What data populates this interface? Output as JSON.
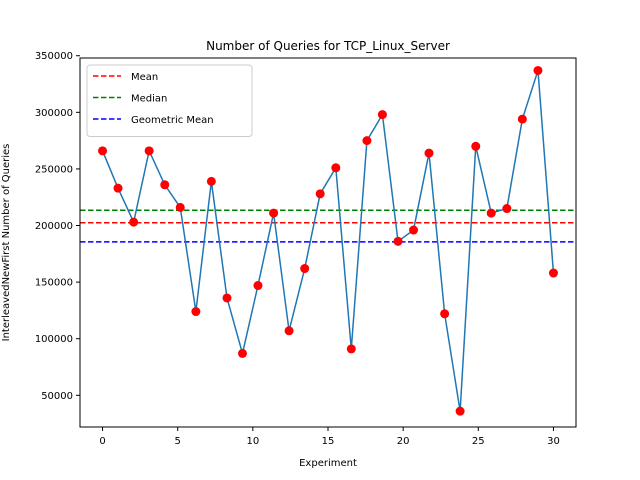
{
  "chart_data": {
    "type": "line",
    "title": "Number of Queries for TCP_Linux_Server",
    "xlabel": "Experiment",
    "ylabel": "InterleavedNewFirst Number of Queries",
    "xlim": [
      -1.5,
      31.5
    ],
    "ylim": [
      22000,
      348000
    ],
    "xticks": [
      0,
      5,
      10,
      15,
      20,
      25,
      30
    ],
    "yticks": [
      50000,
      100000,
      150000,
      200000,
      250000,
      300000,
      350000
    ],
    "x": [
      0,
      1.03,
      2.07,
      3.1,
      4.14,
      5.17,
      6.21,
      7.24,
      8.28,
      9.31,
      10.34,
      11.38,
      12.41,
      13.45,
      14.48,
      15.52,
      16.55,
      17.59,
      18.62,
      19.66,
      20.69,
      21.72,
      22.76,
      23.79,
      24.83,
      25.86,
      26.9,
      27.93,
      28.97,
      30.0
    ],
    "series": [
      {
        "values": [
          266000,
          233000,
          203000,
          266000,
          236000,
          216000,
          124000,
          239000,
          136000,
          87000,
          147000,
          211000,
          107000,
          162000,
          228000,
          251000,
          91000,
          275000,
          298000,
          186000,
          196000,
          264000,
          122000,
          36000,
          270000,
          211000,
          215000,
          294000,
          337000,
          158000
        ],
        "line_color": "#1f77b4",
        "marker_color": "#ff0000"
      }
    ],
    "reference_lines": [
      {
        "name": "Mean",
        "value": 202500,
        "color": "#ff0000"
      },
      {
        "name": "Median",
        "value": 213500,
        "color": "#008000"
      },
      {
        "name": "Geometric Mean",
        "value": 185500,
        "color": "#0000ff"
      }
    ],
    "legend_position": "top-left",
    "grid": false
  }
}
